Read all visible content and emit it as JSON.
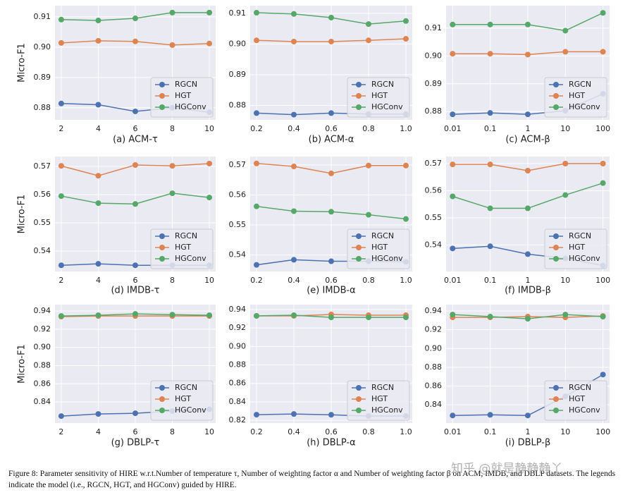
{
  "chart_data": [
    {
      "type": "line",
      "title": "(a) ACM-τ",
      "ylabel": "Micro-F1",
      "x": [
        2,
        4,
        6,
        8,
        10
      ],
      "xlim": [
        1.66,
        10.34
      ],
      "xticks": [
        2,
        4,
        6,
        8,
        10
      ],
      "ylim": [
        0.876,
        0.9137
      ],
      "yticks": [
        0.88,
        0.89,
        {
          "value": 0.9,
          "label": "0.90"
        },
        0.91
      ],
      "grid": true,
      "legend": "lower right",
      "series": [
        {
          "name": "RGCN",
          "color": "#4c72b0",
          "values": [
            0.8814,
            0.881,
            0.8788,
            0.88,
            0.8785
          ]
        },
        {
          "name": "HGT",
          "color": "#dd8452",
          "values": [
            0.9014,
            0.9021,
            0.9019,
            0.9007,
            0.9012
          ]
        },
        {
          "name": "HGConv",
          "color": "#55a868",
          "values": [
            0.9091,
            0.9088,
            0.9095,
            0.9114,
            0.9114
          ]
        }
      ]
    },
    {
      "type": "line",
      "title": "(b) ACM-α",
      "x": [
        0.2,
        0.4,
        0.6,
        0.8,
        1.0
      ],
      "xlim": [
        0.166,
        1.034
      ],
      "xticks": [
        0.2,
        0.4,
        0.6,
        0.8,
        {
          "value": 1.0,
          "label": "1.0"
        }
      ],
      "ylim": [
        0.8753,
        0.9125
      ],
      "yticks": [
        0.88,
        0.89,
        {
          "value": 0.9,
          "label": "0.90"
        },
        0.91
      ],
      "grid": true,
      "legend": "lower right",
      "series": [
        {
          "name": "RGCN",
          "color": "#4c72b0",
          "values": [
            0.8775,
            0.877,
            0.8775,
            0.8772,
            0.8772
          ]
        },
        {
          "name": "HGT",
          "color": "#dd8452",
          "values": [
            0.9012,
            0.9008,
            0.9008,
            0.9012,
            0.9017
          ]
        },
        {
          "name": "HGConv",
          "color": "#55a868",
          "values": [
            0.9102,
            0.9098,
            0.9086,
            0.9065,
            0.9075
          ]
        }
      ]
    },
    {
      "type": "line",
      "title": "(c) ACM-β",
      "x": [
        0.01,
        0.1,
        1,
        10,
        100
      ],
      "xscale": "log",
      "xlim": [
        0.0067,
        150
      ],
      "xticks": [
        0.01,
        0.1,
        1,
        10,
        100
      ],
      "ylim": [
        0.877,
        0.9181
      ],
      "yticks": [
        0.88,
        0.89,
        {
          "value": 0.9,
          "label": "0.90"
        },
        0.91
      ],
      "grid": true,
      "legend": "lower right",
      "series": [
        {
          "name": "RGCN",
          "color": "#4c72b0",
          "values": [
            0.879,
            0.8795,
            0.879,
            0.8803,
            0.8864
          ]
        },
        {
          "name": "HGT",
          "color": "#dd8452",
          "values": [
            0.9008,
            0.9008,
            0.9005,
            0.9015,
            0.9015
          ]
        },
        {
          "name": "HGConv",
          "color": "#55a868",
          "values": [
            0.9113,
            0.9113,
            0.9113,
            0.9091,
            0.9155
          ]
        }
      ]
    },
    {
      "type": "line",
      "title": "(d) IMDB-τ",
      "ylabel": "Micro-F1",
      "x": [
        2,
        4,
        6,
        8,
        10
      ],
      "xlim": [
        1.66,
        10.34
      ],
      "xticks": [
        2,
        4,
        6,
        8,
        10
      ],
      "ylim": [
        0.5328,
        0.5735
      ],
      "yticks": [
        0.54,
        0.55,
        0.56,
        0.57
      ],
      "grid": true,
      "legend": "lower right",
      "series": [
        {
          "name": "RGCN",
          "color": "#4c72b0",
          "values": [
            0.535,
            0.5355,
            0.535,
            0.535,
            0.535
          ]
        },
        {
          "name": "HGT",
          "color": "#dd8452",
          "values": [
            0.5702,
            0.5667,
            0.5705,
            0.5702,
            0.571
          ]
        },
        {
          "name": "HGConv",
          "color": "#55a868",
          "values": [
            0.5595,
            0.557,
            0.5567,
            0.5605,
            0.559
          ]
        }
      ]
    },
    {
      "type": "line",
      "title": "(e) IMDB-α",
      "x": [
        0.2,
        0.4,
        0.6,
        0.8,
        1.0
      ],
      "xlim": [
        0.166,
        1.034
      ],
      "xticks": [
        0.2,
        0.4,
        0.6,
        0.8,
        {
          "value": 1.0,
          "label": "1.0"
        }
      ],
      "ylim": [
        0.5345,
        0.5728
      ],
      "yticks": [
        0.54,
        0.55,
        0.56,
        0.57
      ],
      "grid": true,
      "legend": "lower right",
      "series": [
        {
          "name": "RGCN",
          "color": "#4c72b0",
          "values": [
            0.5367,
            0.5384,
            0.5379,
            0.5379,
            0.5377
          ]
        },
        {
          "name": "HGT",
          "color": "#dd8452",
          "values": [
            0.5705,
            0.5695,
            0.5672,
            0.5698,
            0.5698
          ]
        },
        {
          "name": "HGConv",
          "color": "#55a868",
          "values": [
            0.5562,
            0.5546,
            0.5544,
            0.5534,
            0.552
          ]
        }
      ]
    },
    {
      "type": "line",
      "title": "(f) IMDB-β",
      "x": [
        0.01,
        0.1,
        1,
        10,
        100
      ],
      "xscale": "log",
      "xlim": [
        0.0067,
        150
      ],
      "xticks": [
        0.01,
        0.1,
        1,
        10,
        100
      ],
      "ylim": [
        0.5302,
        0.5726
      ],
      "yticks": [
        0.54,
        0.55,
        0.56,
        0.57
      ],
      "grid": true,
      "legend": "lower right",
      "series": [
        {
          "name": "RGCN",
          "color": "#4c72b0",
          "values": [
            0.5387,
            0.5395,
            0.5366,
            0.535,
            0.5324
          ]
        },
        {
          "name": "HGT",
          "color": "#dd8452",
          "values": [
            0.5697,
            0.5697,
            0.5674,
            0.57,
            0.57
          ]
        },
        {
          "name": "HGConv",
          "color": "#55a868",
          "values": [
            0.5579,
            0.5535,
            0.5535,
            0.5584,
            0.5628
          ]
        }
      ]
    },
    {
      "type": "line",
      "title": "(g) DBLP-τ",
      "ylabel": "Micro-F1",
      "x": [
        2,
        4,
        6,
        8,
        10
      ],
      "xlim": [
        1.66,
        10.34
      ],
      "xticks": [
        2,
        4,
        6,
        8,
        10
      ],
      "ylim": [
        0.8168,
        0.947
      ],
      "yticks": [
        0.84,
        0.86,
        0.88,
        {
          "value": 0.9,
          "label": "0.90"
        },
        0.92,
        0.94
      ],
      "grid": true,
      "legend": "lower right",
      "series": [
        {
          "name": "RGCN",
          "color": "#4c72b0",
          "values": [
            0.8245,
            0.8268,
            0.8276,
            0.83,
            0.832
          ]
        },
        {
          "name": "HGT",
          "color": "#dd8452",
          "values": [
            0.9338,
            0.9345,
            0.9345,
            0.9345,
            0.9345
          ]
        },
        {
          "name": "HGConv",
          "color": "#55a868",
          "values": [
            0.9345,
            0.9353,
            0.9368,
            0.936,
            0.9353
          ]
        }
      ]
    },
    {
      "type": "line",
      "title": "(h) DBLP-α",
      "x": [
        0.2,
        0.4,
        0.6,
        0.8,
        1.0
      ],
      "xlim": [
        0.166,
        1.034
      ],
      "xticks": [
        0.2,
        0.4,
        0.6,
        0.8,
        {
          "value": 1.0,
          "label": "1.0"
        }
      ],
      "ylim": [
        0.817,
        0.9453
      ],
      "yticks": [
        0.82,
        0.84,
        0.86,
        0.88,
        {
          "value": 0.9,
          "label": "0.90"
        },
        0.92,
        0.94
      ],
      "grid": true,
      "legend": "lower right",
      "series": [
        {
          "name": "RGCN",
          "color": "#4c72b0",
          "values": [
            0.8261,
            0.8268,
            0.826,
            0.8246,
            0.8246
          ]
        },
        {
          "name": "HGT",
          "color": "#dd8452",
          "values": [
            0.9331,
            0.9331,
            0.9346,
            0.9338,
            0.9338
          ]
        },
        {
          "name": "HGConv",
          "color": "#55a868",
          "values": [
            0.9331,
            0.9338,
            0.9315,
            0.9315,
            0.9315
          ]
        }
      ]
    },
    {
      "type": "line",
      "title": "(i) DBLP-β",
      "x": [
        0.01,
        0.1,
        1,
        10,
        100
      ],
      "xscale": "log",
      "xlim": [
        0.0067,
        150
      ],
      "xticks": [
        0.01,
        0.1,
        1,
        10,
        100
      ],
      "ylim": [
        0.8205,
        0.9468
      ],
      "yticks": [
        0.84,
        0.86,
        0.88,
        {
          "value": 0.9,
          "label": "0.90"
        },
        0.92,
        0.94
      ],
      "grid": true,
      "legend": "lower right",
      "series": [
        {
          "name": "RGCN",
          "color": "#4c72b0",
          "values": [
            0.8286,
            0.8293,
            0.8286,
            0.849,
            0.8722
          ]
        },
        {
          "name": "HGT",
          "color": "#dd8452",
          "values": [
            0.9332,
            0.9332,
            0.934,
            0.9332,
            0.9347
          ]
        },
        {
          "name": "HGConv",
          "color": "#55a868",
          "values": [
            0.9362,
            0.934,
            0.9317,
            0.9362,
            0.934
          ]
        }
      ]
    }
  ],
  "caption": "Figure 8: Parameter sensitivity of HIRE w.r.t.Number of temperature τ, Number of weighting factor α and Number of weighting factor β on ACM, IMDB, and DBLP datasets. The legends indicate the model (i.e., RGCN, HGT, and HGConv) guided by HIRE.",
  "watermark": "知乎 @就是静静静丫"
}
